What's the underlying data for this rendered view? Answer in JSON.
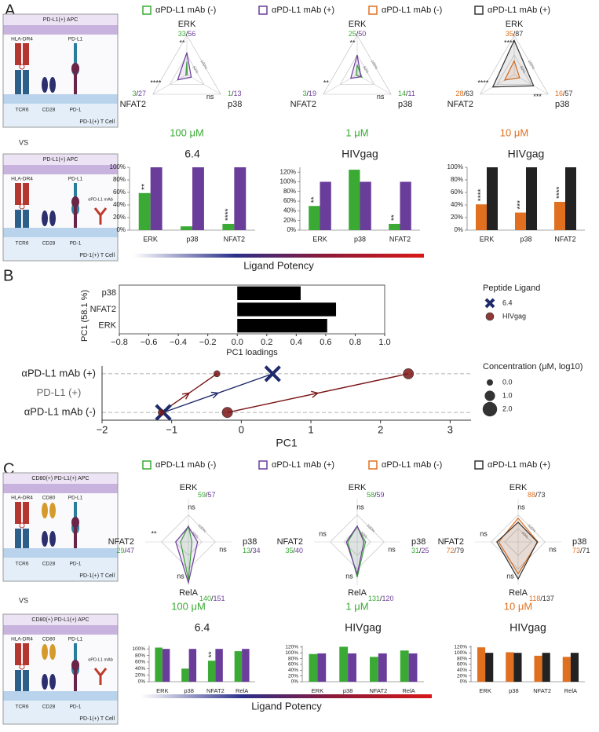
{
  "panel_labels": [
    "A",
    "B",
    "C"
  ],
  "vs_labels": [
    "VS",
    "VS"
  ],
  "ligand_potency": [
    "Ligand Potency",
    "Ligand Potency"
  ],
  "diagrams": [
    {
      "apc": "PD-L1(+) APC",
      "tcell": "PD-1(+) T Cell",
      "molecules": [
        "HLA-DR4",
        "TCR6",
        "CD28",
        "PD-L1",
        "PD-1"
      ]
    },
    {
      "apc": "PD-L1(+) APC",
      "tcell": "PD-1(+) T Cell",
      "molecules": [
        "HLA-DR4",
        "TCR6",
        "CD28",
        "PD-L1",
        "PD-1",
        "αPD-L1 mAb"
      ]
    },
    {
      "apc": "CD80(+) PD-L1(+) APC",
      "tcell": "PD-1(+) T Cell",
      "molecules": [
        "HLA-DR4",
        "TCR6",
        "CD80",
        "CD28",
        "PD-L1",
        "PD-1"
      ]
    },
    {
      "apc": "CD80(+) PD-L1(+) APC",
      "tcell": "PD-1(+) T Cell",
      "molecules": [
        "HLA-DR4",
        "TCR6",
        "CD80",
        "CD28",
        "PD-L1",
        "PD-1",
        "αPD-L1 mAb"
      ]
    }
  ],
  "chart_data": [
    {
      "type": "radar",
      "axes": [
        "ERK",
        "p38",
        "NFAT2"
      ],
      "series": [
        {
          "name": "αPD-L1 mAb (-)",
          "color": "#3aaa35",
          "values": [
            33,
            1,
            3
          ]
        },
        {
          "name": "αPD-L1 mAb (+)",
          "color": "#6a3d9a",
          "values": [
            56,
            13,
            27
          ]
        }
      ],
      "value_labels": [
        "33/56",
        "1/13",
        "3/27"
      ],
      "significance": [
        "**",
        "ns",
        "****"
      ],
      "rlim": [
        0,
        100
      ],
      "rticks": [
        {
          "value": 50,
          "label": "50%"
        },
        {
          "value": 100,
          "label": "100%"
        }
      ],
      "subtitle": "100 μM"
    },
    {
      "type": "radar",
      "axes": [
        "ERK",
        "p38",
        "NFAT2"
      ],
      "series": [
        {
          "name": "αPD-L1 mAb (-)",
          "color": "#3aaa35",
          "values": [
            25,
            14,
            3
          ]
        },
        {
          "name": "αPD-L1 mAb (+)",
          "color": "#6a3d9a",
          "values": [
            50,
            11,
            19
          ]
        }
      ],
      "value_labels": [
        "25/50",
        "14/11",
        "3/19"
      ],
      "significance": [
        "**",
        "ns",
        "**"
      ],
      "rlim": [
        0,
        100
      ],
      "rticks": [
        {
          "value": 50,
          "label": "50%"
        },
        {
          "value": 100,
          "label": "100%"
        }
      ],
      "subtitle": "1 μM"
    },
    {
      "type": "radar",
      "axes": [
        "ERK",
        "p38",
        "NFAT2"
      ],
      "series": [
        {
          "name": "αPD-L1 mAb (-)",
          "color": "#e07020",
          "values": [
            35,
            16,
            28
          ]
        },
        {
          "name": "αPD-L1 mAb (+)",
          "color": "#333333",
          "values": [
            87,
            57,
            63
          ]
        }
      ],
      "value_labels": [
        "35/87",
        "16/57",
        "28/63"
      ],
      "significance": [
        "****",
        "***",
        "****"
      ],
      "rlim": [
        0,
        100
      ],
      "rticks": [
        {
          "value": 50,
          "label": "50%"
        },
        {
          "value": 100,
          "label": "100%"
        }
      ],
      "subtitle": "10 μM"
    },
    {
      "type": "bar",
      "title": "6.4",
      "categories": [
        "ERK",
        "p38",
        "NFAT2"
      ],
      "series": [
        {
          "color": "#3aaa35",
          "values": [
            59,
            6,
            10
          ]
        },
        {
          "color": "#6a3d9a",
          "values": [
            100,
            100,
            100
          ]
        }
      ],
      "ylim": [
        0,
        100
      ],
      "yticks": [
        {
          "value": 0,
          "label": "0%"
        },
        {
          "value": 20,
          "label": "20%"
        },
        {
          "value": 40,
          "label": "40%"
        },
        {
          "value": 60,
          "label": "60%"
        },
        {
          "value": 80,
          "label": "80%"
        },
        {
          "value": 100,
          "label": "100%"
        }
      ],
      "significance": [
        "**",
        null,
        "****"
      ]
    },
    {
      "type": "bar",
      "title": "HIVgag",
      "categories": [
        "ERK",
        "p38",
        "NFAT2"
      ],
      "series": [
        {
          "color": "#3aaa35",
          "values": [
            50,
            125,
            13
          ]
        },
        {
          "color": "#6a3d9a",
          "values": [
            100,
            100,
            100
          ]
        }
      ],
      "ylim": [
        0,
        130
      ],
      "yticks": [
        {
          "value": 0,
          "label": "0%"
        },
        {
          "value": 20,
          "label": "20%"
        },
        {
          "value": 40,
          "label": "40%"
        },
        {
          "value": 60,
          "label": "60%"
        },
        {
          "value": 80,
          "label": "80%"
        },
        {
          "value": 100,
          "label": "100%"
        },
        {
          "value": 120,
          "label": "120%"
        }
      ],
      "significance": [
        "**",
        null,
        "**"
      ]
    },
    {
      "type": "bar",
      "title": "HIVgag",
      "categories": [
        "ERK",
        "p38",
        "NFAT2"
      ],
      "series": [
        {
          "color": "#e07020",
          "values": [
            41,
            28,
            45
          ]
        },
        {
          "color": "#222222",
          "values": [
            100,
            100,
            100
          ]
        }
      ],
      "ylim": [
        0,
        100
      ],
      "yticks": [
        {
          "value": 0,
          "label": "0%"
        },
        {
          "value": 20,
          "label": "20%"
        },
        {
          "value": 40,
          "label": "40%"
        },
        {
          "value": 60,
          "label": "60%"
        },
        {
          "value": 80,
          "label": "80%"
        },
        {
          "value": 100,
          "label": "100%"
        }
      ],
      "significance": [
        "****",
        "***",
        "****"
      ]
    },
    {
      "type": "bar",
      "orientation": "horizontal",
      "categories": [
        "p38",
        "NFAT2",
        "ERK"
      ],
      "values": [
        0.43,
        0.67,
        0.61
      ],
      "color": "#000000",
      "xlim": [
        -0.8,
        1.0
      ],
      "xticks": [
        {
          "value": -0.8,
          "label": "−0.8"
        },
        {
          "value": -0.6,
          "label": "−0.6"
        },
        {
          "value": -0.4,
          "label": "−0.4"
        },
        {
          "value": -0.2,
          "label": "−0.2"
        },
        {
          "value": 0,
          "label": "0.0"
        },
        0.2,
        0.4,
        0.6,
        0.8,
        {
          "value": 1,
          "label": "1.0"
        }
      ],
      "xlabel": "PC1 loadings",
      "ylabel": "PC1 (58.1 %)"
    },
    {
      "type": "scatter",
      "series": [
        {
          "name": "6.4",
          "color": "#1f2a6b",
          "marker": "x",
          "x": [
            -1.12,
            0.45
          ],
          "y": [
            0,
            1
          ],
          "size": [
            2.0,
            2.0
          ]
        },
        {
          "name": "HIVgag",
          "color": "#7a1515",
          "marker": "o",
          "x": [
            -1.15,
            -0.35,
            -0.2,
            2.4
          ],
          "y": [
            0,
            1,
            0,
            1
          ],
          "size": [
            0.0,
            0.0,
            1.0,
            1.0
          ]
        }
      ],
      "xlim": [
        -2,
        3.3
      ],
      "xticks": [
        {
          "value": -2,
          "label": "−2"
        },
        {
          "value": -1,
          "label": "−1"
        },
        0,
        1,
        2,
        3
      ],
      "ylim": [
        -0.2,
        1.2
      ],
      "yticks": [
        {
          "value": 0,
          "label": "αPD-L1 mAb (-)"
        },
        {
          "value": 1,
          "label": "αPD-L1 mAb (+)"
        }
      ],
      "grid": true,
      "xlabel": "PC1",
      "annotation": "PD-L1 (+)",
      "legend_title": "Peptide Ligand",
      "size_legend": {
        "title": "Concentration (μM, log10)",
        "ticks": [
          {
            "value": 0,
            "label": "0.0"
          },
          {
            "value": 1,
            "label": "1.0"
          },
          {
            "value": 2,
            "label": "2.0"
          }
        ]
      }
    },
    {
      "type": "radar",
      "axes": [
        "ERK",
        "p38",
        "RelA",
        "NFAT2"
      ],
      "series": [
        {
          "name": "αPD-L1 mAb (-)",
          "color": "#3aaa35",
          "values": [
            59,
            13,
            140,
            29
          ]
        },
        {
          "name": "αPD-L1 mAb (+)",
          "color": "#6a3d9a",
          "values": [
            57,
            34,
            151,
            47
          ]
        }
      ],
      "value_labels": [
        "59/57",
        "13/34",
        "140/151",
        "29/47"
      ],
      "significance": [
        "ns",
        "ns",
        "ns",
        "**"
      ],
      "rlim": [
        0,
        160
      ],
      "rticks": [
        {
          "value": 50,
          "label": "50%"
        },
        {
          "value": 100,
          "label": "100%"
        }
      ],
      "subtitle": "100 μM"
    },
    {
      "type": "radar",
      "axes": [
        "ERK",
        "p38",
        "RelA",
        "NFAT2"
      ],
      "series": [
        {
          "name": "αPD-L1 mAb (-)",
          "color": "#3aaa35",
          "values": [
            58,
            31,
            131,
            35
          ]
        },
        {
          "name": "αPD-L1 mAb (+)",
          "color": "#6a3d9a",
          "values": [
            59,
            25,
            120,
            40
          ]
        }
      ],
      "value_labels": [
        "58/59",
        "31/25",
        "131/120",
        "35/40"
      ],
      "significance": [
        "ns",
        "ns",
        "ns",
        "ns"
      ],
      "rlim": [
        0,
        160
      ],
      "rticks": [
        {
          "value": 50,
          "label": "50%"
        },
        {
          "value": 100,
          "label": "100%"
        }
      ],
      "subtitle": "1 μM"
    },
    {
      "type": "radar",
      "axes": [
        "ERK",
        "p38",
        "RelA",
        "NFAT2"
      ],
      "series": [
        {
          "name": "αPD-L1 mAb (-)",
          "color": "#e07020",
          "values": [
            88,
            73,
            118,
            72
          ]
        },
        {
          "name": "αPD-L1 mAb (+)",
          "color": "#333333",
          "values": [
            73,
            71,
            137,
            79
          ]
        }
      ],
      "value_labels": [
        "88/73",
        "73/71",
        "118/137",
        "72/79"
      ],
      "significance": [
        "ns",
        "ns",
        "ns",
        "ns"
      ],
      "rlim": [
        0,
        160
      ],
      "rticks": [
        {
          "value": 50,
          "label": "50%"
        },
        {
          "value": 100,
          "label": "100%"
        }
      ],
      "subtitle": "10 μM"
    },
    {
      "type": "bar",
      "title": "6.4",
      "categories": [
        "ERK",
        "p38",
        "NFAT2",
        "RelA"
      ],
      "series": [
        {
          "color": "#3aaa35",
          "values": [
            104,
            40,
            64,
            93
          ]
        },
        {
          "color": "#6a3d9a",
          "values": [
            100,
            100,
            100,
            100
          ]
        }
      ],
      "ylim": [
        0,
        110
      ],
      "yticks": [
        {
          "value": 0,
          "label": "0%"
        },
        {
          "value": 20,
          "label": "20%"
        },
        {
          "value": 40,
          "label": "40%"
        },
        {
          "value": 60,
          "label": "60%"
        },
        {
          "value": 80,
          "label": "80%"
        },
        {
          "value": 100,
          "label": "100%"
        }
      ],
      "significance": [
        null,
        null,
        "**",
        null
      ]
    },
    {
      "type": "bar",
      "title": "HIVgag",
      "categories": [
        "ERK",
        "p38",
        "NFAT2",
        "RelA"
      ],
      "series": [
        {
          "color": "#3aaa35",
          "values": [
            96,
            121,
            86,
            108
          ]
        },
        {
          "color": "#6a3d9a",
          "values": [
            98,
            98,
            98,
            98
          ]
        }
      ],
      "ylim": [
        0,
        125
      ],
      "yticks": [
        {
          "value": 0,
          "label": "0%"
        },
        {
          "value": 20,
          "label": "20%"
        },
        {
          "value": 40,
          "label": "40%"
        },
        {
          "value": 60,
          "label": "60%"
        },
        {
          "value": 80,
          "label": "80%"
        },
        {
          "value": 100,
          "label": "100%"
        },
        {
          "value": 120,
          "label": "120%"
        }
      ]
    },
    {
      "type": "bar",
      "title": "HIVgag",
      "categories": [
        "ERK",
        "p38",
        "NFAT2",
        "RelA"
      ],
      "series": [
        {
          "color": "#e07020",
          "values": [
            119,
            102,
            90,
            86
          ]
        },
        {
          "color": "#222222",
          "values": [
            100,
            100,
            100,
            100
          ]
        }
      ],
      "ylim": [
        0,
        125
      ],
      "yticks": [
        {
          "value": 0,
          "label": "0%"
        },
        {
          "value": 20,
          "label": "20%"
        },
        {
          "value": 40,
          "label": "40%"
        },
        {
          "value": 60,
          "label": "60%"
        },
        {
          "value": 80,
          "label": "80%"
        },
        {
          "value": 100,
          "label": "100%"
        },
        {
          "value": 120,
          "label": "120%"
        }
      ]
    }
  ]
}
